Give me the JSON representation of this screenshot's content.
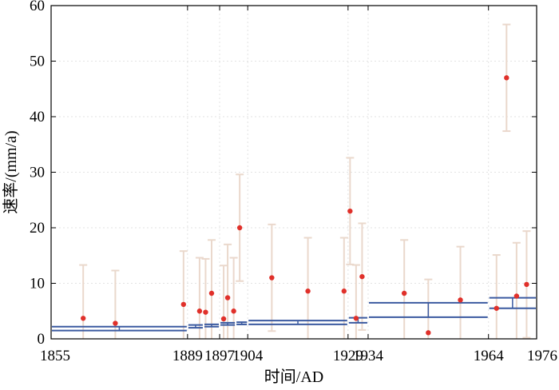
{
  "chart_data": {
    "type": "scatter",
    "title": "",
    "xlabel": "时间/AD",
    "ylabel": "速率/(mm/a)",
    "xlim": [
      1855,
      1976
    ],
    "ylim": [
      0,
      60
    ],
    "x_ticks": [
      1855,
      1889,
      1897,
      1904,
      1929,
      1934,
      1964,
      1976
    ],
    "x_tick_labels": [
      "1855",
      "1889",
      "1897",
      "1904",
      "1929",
      "1934",
      "1964",
      "1976"
    ],
    "y_ticks": [
      0,
      10,
      20,
      30,
      40,
      50,
      60
    ],
    "y_tick_labels": [
      "0",
      "10",
      "20",
      "30",
      "40",
      "50",
      "60"
    ],
    "grid": true,
    "colors": {
      "points": "#e0302a",
      "error_bars": "#ead8cc",
      "step_lines": "#3b5aa0",
      "grid": "#e2e2e2"
    },
    "series": [
      {
        "kind": "points_with_error_bars",
        "points": [
          {
            "x": 1863,
            "y": 3.7,
            "low": 0.0,
            "high": 13.3
          },
          {
            "x": 1871,
            "y": 2.8,
            "low": 0.0,
            "high": 12.3
          },
          {
            "x": 1888,
            "y": 6.2,
            "low": 0.0,
            "high": 15.8
          },
          {
            "x": 1892,
            "y": 5.0,
            "low": 0.0,
            "high": 14.6
          },
          {
            "x": 1893.5,
            "y": 4.8,
            "low": 0.0,
            "high": 14.4
          },
          {
            "x": 1895,
            "y": 8.2,
            "low": 0.0,
            "high": 17.8
          },
          {
            "x": 1898,
            "y": 3.6,
            "low": 0.0,
            "high": 13.2
          },
          {
            "x": 1899,
            "y": 7.4,
            "low": 0.0,
            "high": 17.0
          },
          {
            "x": 1900.5,
            "y": 5.0,
            "low": 0.0,
            "high": 14.6
          },
          {
            "x": 1902,
            "y": 20.0,
            "low": 10.4,
            "high": 29.6
          },
          {
            "x": 1910,
            "y": 11.0,
            "low": 1.4,
            "high": 20.6
          },
          {
            "x": 1919,
            "y": 8.6,
            "low": 0.0,
            "high": 18.2
          },
          {
            "x": 1928,
            "y": 8.6,
            "low": 0.0,
            "high": 18.2
          },
          {
            "x": 1929.5,
            "y": 23.0,
            "low": 13.4,
            "high": 32.6
          },
          {
            "x": 1931,
            "y": 3.7,
            "low": 0.0,
            "high": 13.3
          },
          {
            "x": 1932.5,
            "y": 11.2,
            "low": 1.6,
            "high": 20.8
          },
          {
            "x": 1943,
            "y": 8.2,
            "low": 0.0,
            "high": 17.8
          },
          {
            "x": 1949,
            "y": 1.1,
            "low": 0.0,
            "high": 10.7
          },
          {
            "x": 1957,
            "y": 7.0,
            "low": 0.0,
            "high": 16.6
          },
          {
            "x": 1966,
            "y": 5.5,
            "low": 0.0,
            "high": 15.1
          },
          {
            "x": 1968.5,
            "y": 47.0,
            "low": 37.4,
            "high": 56.6
          },
          {
            "x": 1971,
            "y": 7.7,
            "low": 0.0,
            "high": 17.3
          },
          {
            "x": 1973.5,
            "y": 9.8,
            "low": 0.2,
            "high": 19.4
          }
        ]
      },
      {
        "kind": "interval_rate_bands",
        "intervals": [
          {
            "x0": 1855,
            "x1": 1889,
            "low": 1.5,
            "high": 2.2
          },
          {
            "x0": 1889,
            "x1": 1893,
            "low": 2.0,
            "high": 2.5
          },
          {
            "x0": 1893,
            "x1": 1897,
            "low": 2.2,
            "high": 2.6
          },
          {
            "x0": 1897,
            "x1": 1901,
            "low": 2.5,
            "high": 2.9
          },
          {
            "x0": 1901,
            "x1": 1904,
            "low": 2.6,
            "high": 3.0
          },
          {
            "x0": 1904,
            "x1": 1929,
            "low": 2.6,
            "high": 3.3
          },
          {
            "x0": 1929,
            "x1": 1934,
            "low": 2.9,
            "high": 3.8
          },
          {
            "x0": 1934,
            "x1": 1964,
            "low": 3.9,
            "high": 6.5
          },
          {
            "x0": 1964,
            "x1": 1976,
            "low": 5.5,
            "high": 7.4
          }
        ]
      }
    ]
  }
}
